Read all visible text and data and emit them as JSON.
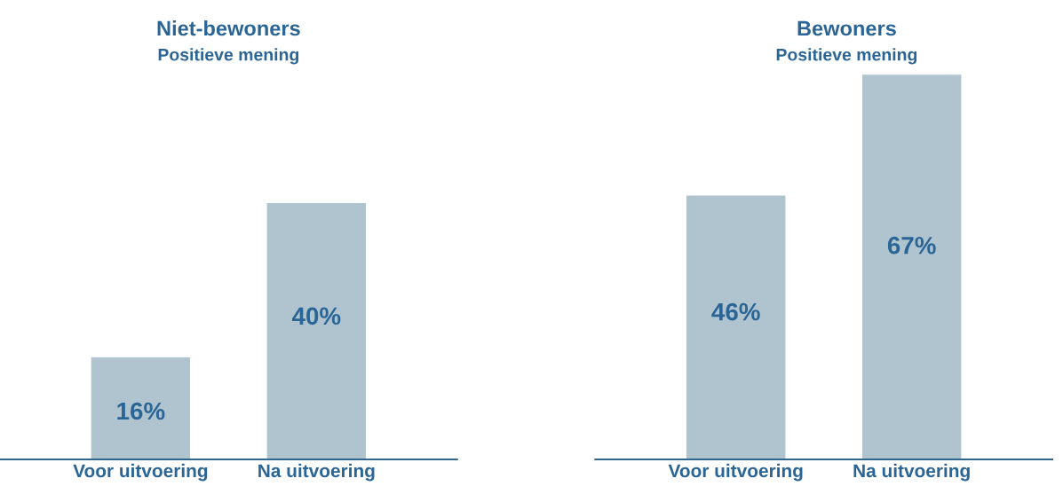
{
  "chart_data": [
    {
      "type": "bar",
      "title": "Niet-bewoners",
      "subtitle": "Positieve mening",
      "categories": [
        "Voor uitvoering",
        "Na uitvoering"
      ],
      "values": [
        16,
        40
      ],
      "value_labels": [
        "16%",
        "40%"
      ],
      "color": "#b0c4cf",
      "grid": false,
      "legend": false,
      "tick_labels": "x"
    },
    {
      "type": "bar",
      "title": "Bewoners",
      "subtitle": "Positieve mening",
      "categories": [
        "Voor uitvoering",
        "Na uitvoering"
      ],
      "values": [
        46,
        67
      ],
      "value_labels": [
        "46%",
        "67%"
      ],
      "color": "#b0c4cf",
      "grid": false,
      "legend": false,
      "tick_labels": "x"
    }
  ]
}
